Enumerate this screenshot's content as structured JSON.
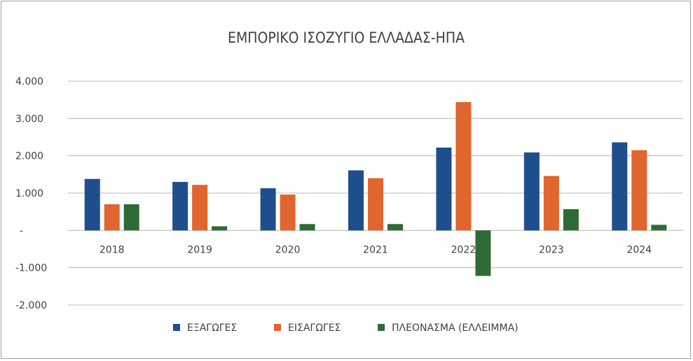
{
  "chart_data": {
    "type": "bar",
    "title": "ΕΜΠΟΡΙΚΟ ΙΣΟΖΥΓΙΟ ΕΛΛΑΔΑΣ-ΗΠΑ",
    "categories": [
      "2018",
      "2019",
      "2020",
      "2021",
      "2022",
      "2023",
      "2024"
    ],
    "series": [
      {
        "name": "ΕΞΑΓΩΓΕΣ",
        "color": "#1f4e8c",
        "values": [
          1380,
          1300,
          1130,
          1610,
          2220,
          2090,
          2360
        ]
      },
      {
        "name": "ΕΙΣΑΓΩΓΕΣ",
        "color": "#e0652f",
        "values": [
          700,
          1220,
          960,
          1400,
          3440,
          1460,
          2150
        ]
      },
      {
        "name": "ΠΛΕΟΝΑΣΜΑ (ΕΛΛΕΙΜΜΑ)",
        "color": "#2e6b34",
        "values": [
          700,
          110,
          170,
          170,
          -1220,
          570,
          150
        ]
      }
    ],
    "ylim": [
      -2000,
      4000
    ],
    "y_ticks": [
      {
        "value": 4000,
        "label": "4.000"
      },
      {
        "value": 3000,
        "label": "3.000"
      },
      {
        "value": 2000,
        "label": "2.000"
      },
      {
        "value": 1000,
        "label": "1.000"
      },
      {
        "value": 0,
        "label": "-"
      },
      {
        "value": -1000,
        "label": "-1.000"
      },
      {
        "value": -2000,
        "label": "-2.000"
      }
    ],
    "grid": true,
    "legend_position": "bottom"
  }
}
